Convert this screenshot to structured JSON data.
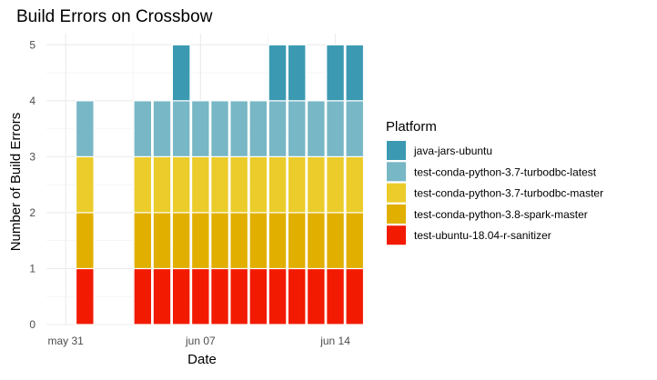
{
  "chart_data": {
    "type": "bar",
    "stacked": true,
    "title": "Build Errors on Crossbow",
    "xlabel": "Date",
    "ylabel": "Number of Build Errors",
    "ylim": [
      0,
      5.2
    ],
    "yticks": [
      0,
      1,
      2,
      3,
      4,
      5
    ],
    "xlim": [
      "2020-05-30",
      "2020-06-16"
    ],
    "xticks": [
      {
        "date": "2020-05-31",
        "label": "may 31"
      },
      {
        "date": "2020-06-07",
        "label": "jun 07"
      },
      {
        "date": "2020-06-14",
        "label": "jun 14"
      }
    ],
    "grid": true,
    "x": [
      "2020-06-01",
      "2020-06-04",
      "2020-06-05",
      "2020-06-06",
      "2020-06-07",
      "2020-06-08",
      "2020-06-09",
      "2020-06-10",
      "2020-06-11",
      "2020-06-12",
      "2020-06-13",
      "2020-06-14",
      "2020-06-15"
    ],
    "legend": {
      "title": "Platform",
      "position": "right"
    },
    "series": [
      {
        "name": "test-ubuntu-18.04-r-sanitizer",
        "color": "#F21A00",
        "values": [
          1,
          1,
          1,
          1,
          1,
          1,
          1,
          1,
          1,
          1,
          1,
          1,
          1
        ]
      },
      {
        "name": "test-conda-python-3.8-spark-master",
        "color": "#E1AF00",
        "values": [
          1,
          1,
          1,
          1,
          1,
          1,
          1,
          1,
          1,
          1,
          1,
          1,
          1
        ]
      },
      {
        "name": "test-conda-python-3.7-turbodbc-master",
        "color": "#EBCC2A",
        "values": [
          1,
          1,
          1,
          1,
          1,
          1,
          1,
          1,
          1,
          1,
          1,
          1,
          1
        ]
      },
      {
        "name": "test-conda-python-3.7-turbodbc-latest",
        "color": "#78B7C5",
        "values": [
          1,
          1,
          1,
          1,
          1,
          1,
          1,
          1,
          1,
          1,
          1,
          1,
          1
        ]
      },
      {
        "name": "java-jars-ubuntu",
        "color": "#3B9AB2",
        "values": [
          0,
          0,
          0,
          1,
          0,
          0,
          0,
          0,
          1,
          1,
          0,
          1,
          1
        ]
      }
    ]
  }
}
